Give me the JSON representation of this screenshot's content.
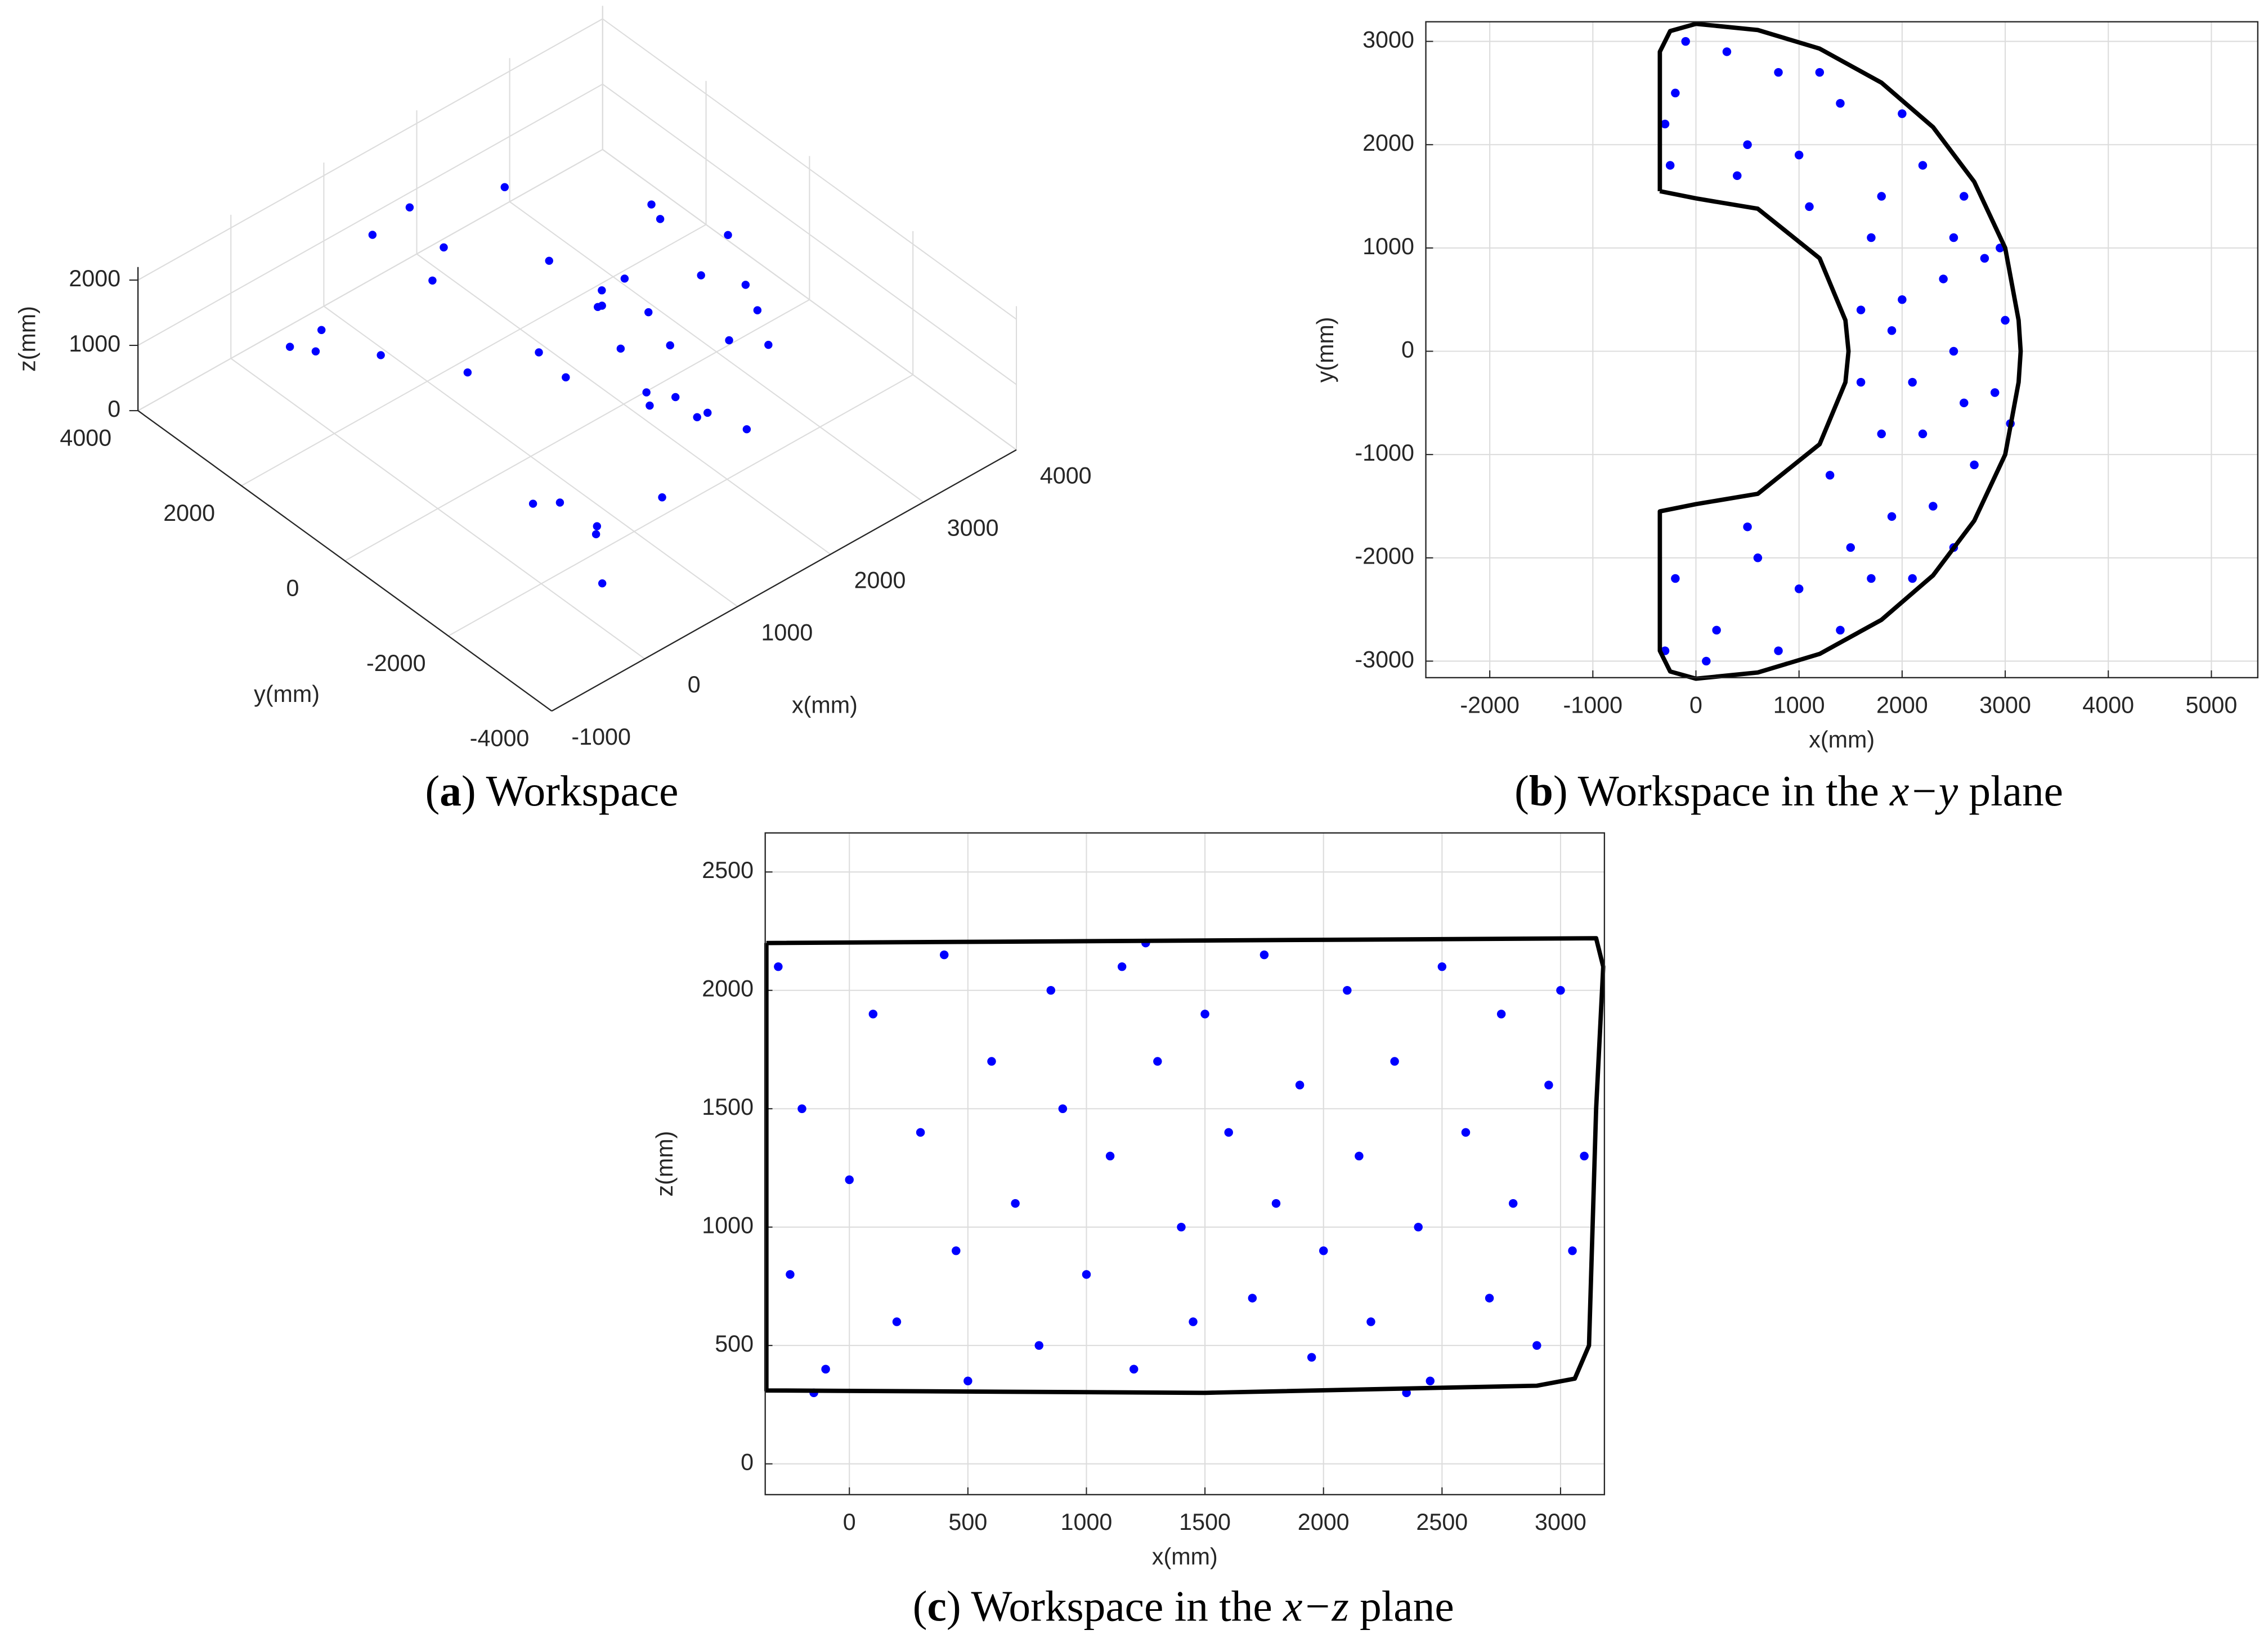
{
  "chart_data": [
    {
      "type": "scatter3d",
      "color": "#0000ff",
      "grid": true,
      "xlabel": "x(mm)",
      "ylabel": "y(mm)",
      "zlabel": "z(mm)",
      "xlim": [
        -1000,
        4000
      ],
      "ylim": [
        -4000,
        4000
      ],
      "zlim": [
        0,
        2200
      ],
      "xticks": [
        -1000,
        0,
        1000,
        2000,
        3000,
        4000
      ],
      "yticks": [
        -4000,
        -2000,
        0,
        2000,
        4000
      ],
      "zticks": [
        0,
        1000,
        2000
      ],
      "x": [
        2500,
        2000,
        2800,
        1800,
        2300,
        2900,
        1700,
        2200,
        1400,
        800,
        300,
        -200,
        -250,
        500,
        1000,
        1200,
        2600,
        3000,
        2100,
        1600,
        1600,
        2400,
        2700,
        1900,
        1500,
        1000,
        600,
        200,
        -200,
        -300,
        100,
        800,
        1400,
        2100,
        2500,
        1300,
        1100,
        3050,
        2950,
        2000
      ],
      "y": [
        0,
        500,
        900,
        -800,
        -1500,
        -400,
        1100,
        1800,
        2400,
        2700,
        2900,
        2500,
        1800,
        2000,
        1900,
        2700,
        1500,
        300,
        -300,
        -300,
        400,
        700,
        -1100,
        -1600,
        -1900,
        -2300,
        -2000,
        -2700,
        -2200,
        -2900,
        -3000,
        -2900,
        -2700,
        -2200,
        -1900,
        -1200,
        1400,
        -700,
        1000,
        2300
      ],
      "z": [
        500,
        1200,
        1900,
        800,
        1600,
        2100,
        400,
        1000,
        1500,
        2000,
        500,
        1200,
        1900,
        800,
        1600,
        2100,
        400,
        1000,
        1500,
        2000,
        500,
        1200,
        1900,
        800,
        1600,
        2100,
        400,
        1000,
        1500,
        2000,
        500,
        1200,
        1900,
        800,
        1600,
        2100,
        400,
        1000,
        1500,
        2000
      ],
      "caption": [
        {
          "text": "(",
          "style": "normal"
        },
        {
          "text": "a",
          "style": "bold"
        },
        {
          "text": ") Workspace",
          "style": "normal"
        }
      ]
    },
    {
      "type": "scatter",
      "color": "#0000ff",
      "grid": true,
      "xlabel": "x(mm)",
      "ylabel": "y(mm)",
      "xlim": [
        -2620,
        5450
      ],
      "ylim": [
        -3160,
        3190
      ],
      "xticks": [
        -2000,
        -1000,
        0,
        1000,
        2000,
        3000,
        4000,
        5000
      ],
      "yticks": [
        -3000,
        -2000,
        -1000,
        0,
        1000,
        2000,
        3000
      ],
      "x": [
        2500,
        2000,
        2800,
        1800,
        2300,
        2900,
        1700,
        2200,
        1400,
        800,
        300,
        -200,
        -250,
        500,
        1000,
        1200,
        2600,
        3000,
        2100,
        1600,
        1600,
        2400,
        2700,
        1900,
        1500,
        1000,
        600,
        200,
        -200,
        -300,
        100,
        800,
        1400,
        2100,
        2500,
        1300,
        1100,
        3050,
        2950,
        2000,
        -100,
        -300,
        400,
        1900,
        2200,
        1700,
        500,
        2600,
        1800,
        2500
      ],
      "y": [
        0,
        500,
        900,
        -800,
        -1500,
        -400,
        1100,
        1800,
        2400,
        2700,
        2900,
        2500,
        1800,
        2000,
        1900,
        2700,
        1500,
        300,
        -300,
        -300,
        400,
        700,
        -1100,
        -1600,
        -1900,
        -2300,
        -2000,
        -2700,
        -2200,
        -2900,
        -3000,
        -2900,
        -2700,
        -2200,
        -1900,
        -1200,
        1400,
        -700,
        1000,
        2300,
        3000,
        2200,
        1700,
        200,
        -800,
        -2200,
        -1700,
        -500,
        1500,
        1100
      ],
      "boundary": {
        "color": "#000000",
        "x": [
          -350,
          -350,
          -250,
          0,
          600,
          1200,
          1800,
          2300,
          2700,
          3000,
          3130,
          3150,
          3130,
          3000,
          2700,
          2300,
          1800,
          1200,
          600,
          0,
          -250,
          -350,
          -350,
          0,
          600,
          1200,
          1450,
          1480,
          1450,
          1200,
          600,
          0,
          -350
        ],
        "y": [
          1550,
          2900,
          3100,
          3170,
          3110,
          2930,
          2600,
          2170,
          1640,
          1000,
          300,
          0,
          -300,
          -1000,
          -1640,
          -2170,
          -2600,
          -2930,
          -3110,
          -3170,
          -3100,
          -2900,
          -1550,
          -1480,
          -1380,
          -900,
          -300,
          0,
          300,
          900,
          1380,
          1480,
          1550
        ]
      },
      "caption": [
        {
          "text": "(",
          "style": "normal"
        },
        {
          "text": "b",
          "style": "bold"
        },
        {
          "text": ") Workspace in the ",
          "style": "normal"
        },
        {
          "text": "x−y",
          "style": "italic"
        },
        {
          "text": " plane",
          "style": "normal"
        }
      ]
    },
    {
      "type": "scatter",
      "color": "#0000ff",
      "grid": true,
      "xlabel": "x(mm)",
      "ylabel": "z(mm)",
      "xlim": [
        -355,
        3185
      ],
      "ylim": [
        -130,
        2665
      ],
      "xticks": [
        0,
        500,
        1000,
        1500,
        2000,
        2500,
        3000
      ],
      "yticks": [
        0,
        500,
        1000,
        1500,
        2000,
        2500
      ],
      "x": [
        -300,
        -200,
        -250,
        -100,
        0,
        100,
        200,
        300,
        400,
        450,
        500,
        600,
        700,
        800,
        850,
        900,
        1000,
        1100,
        1150,
        1200,
        1300,
        1400,
        1450,
        1500,
        1600,
        1700,
        1750,
        1800,
        1900,
        1950,
        2000,
        2100,
        2150,
        2200,
        2300,
        2400,
        2450,
        2500,
        2600,
        2700,
        2750,
        2800,
        2900,
        2950,
        3000,
        3050,
        3100,
        -150,
        1250,
        2350
      ],
      "y": [
        2100,
        1500,
        800,
        400,
        1200,
        1900,
        600,
        1400,
        2150,
        900,
        350,
        1700,
        1100,
        500,
        2000,
        1500,
        800,
        1300,
        2100,
        400,
        1700,
        1000,
        600,
        1900,
        1400,
        700,
        2150,
        1100,
        1600,
        450,
        900,
        2000,
        1300,
        600,
        1700,
        1000,
        350,
        2100,
        1400,
        700,
        1900,
        1100,
        500,
        1600,
        2000,
        900,
        1300,
        300,
        2200,
        300
      ],
      "boundary": {
        "color": "#000000",
        "x": [
          -350,
          3150,
          3180,
          3150,
          3120,
          3060,
          2900,
          1500,
          -350,
          -350
        ],
        "y": [
          2200,
          2220,
          2100,
          1500,
          500,
          360,
          330,
          300,
          310,
          2200
        ]
      },
      "caption": [
        {
          "text": "(",
          "style": "normal"
        },
        {
          "text": "c",
          "style": "bold"
        },
        {
          "text": ") Workspace in the ",
          "style": "normal"
        },
        {
          "text": "x−z",
          "style": "italic"
        },
        {
          "text": " plane",
          "style": "normal"
        }
      ]
    }
  ]
}
